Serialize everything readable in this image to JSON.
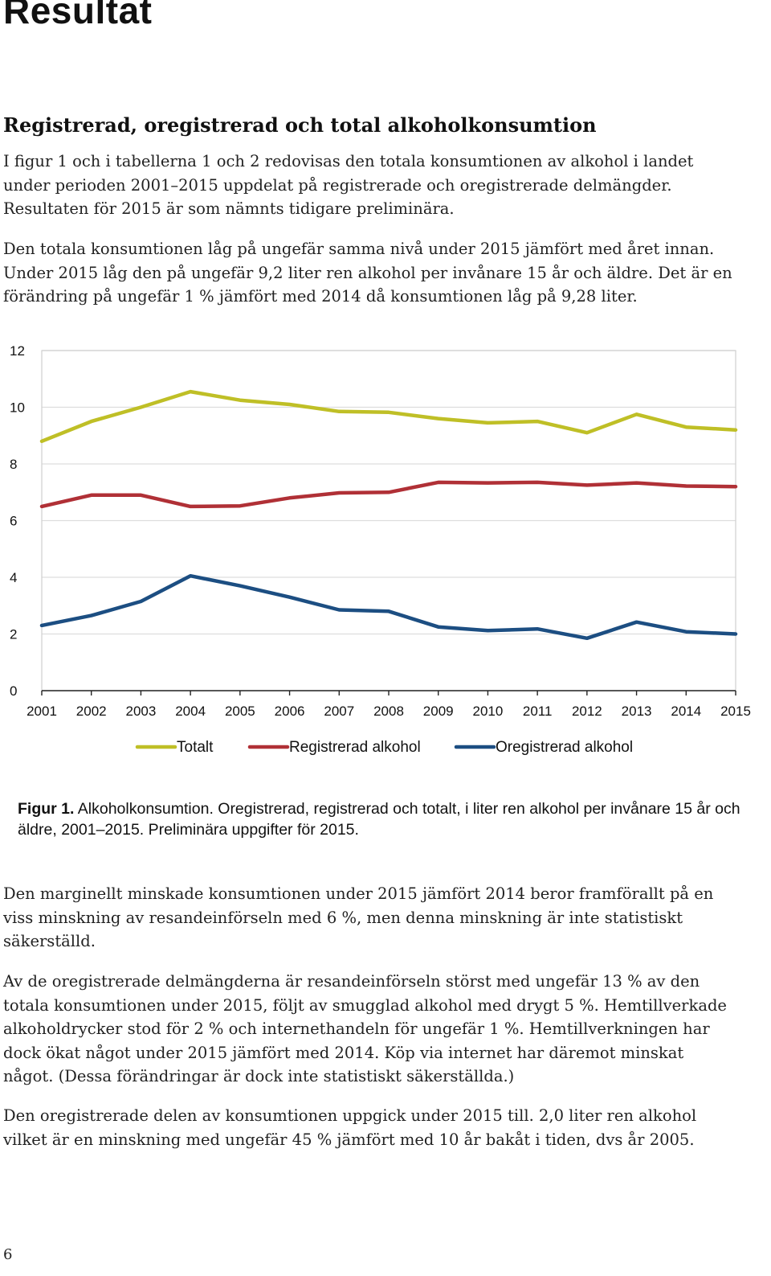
{
  "page": {
    "title": "Resultat",
    "section_heading": "Registrerad, oregistrerad och total alkoholkonsumtion",
    "paragraph1": [
      "I figur 1 och i tabellerna 1 och 2 redovisas den totala konsumtionen av alkohol i landet",
      "under perioden 2001–2015 uppdelat på registrerade och oregistrerade delmängder.",
      "Resultaten för 2015 är som nämnts tidigare preliminära."
    ],
    "paragraph2": [
      "Den totala konsumtionen låg på ungefär samma nivå under 2015 jämfört med året innan.",
      "Under 2015 låg den på ungefär 9,2 liter ren alkohol per invånare 15 år och äldre. Det är en",
      "förändring på ungefär 1 % jämfört med 2014 då konsumtionen låg på 9,28 liter."
    ],
    "caption_label": "Figur 1.",
    "caption_text": "Alkoholkonsumtion. Oregistrerad, registrerad och totalt, i liter ren alkohol per invånare 15 år och äldre, 2001–2015. Preliminära uppgifter för 2015.",
    "paragraph3": [
      "Den marginellt minskade konsumtionen under 2015 jämfört 2014 beror framförallt på en",
      "viss minskning av resandeinförseln med 6 %, men denna minskning är inte statistiskt",
      "säkerställd."
    ],
    "paragraph4": [
      "Av de oregistrerade delmängderna är resandeinförseln störst med ungefär 13 % av den",
      "totala konsumtionen under 2015, följt av smugglad alkohol med drygt 5 %. Hemtillverkade",
      "alkoholdrycker stod för 2 % och internethandeln för ungefär 1 %. Hemtillverkningen har",
      "dock ökat något under 2015 jämfört med 2014. Köp via internet har däremot minskat",
      "något. (Dessa förändringar är dock inte statistiskt säkerställda.)"
    ],
    "paragraph5": [
      "Den oregistrerade delen av konsumtionen uppgick under 2015 till. 2,0 liter ren alkohol",
      "vilket är en minskning med ungefär 45 % jämfört med 10 år bakåt i tiden, dvs år 2005."
    ],
    "page_number": "6"
  },
  "chart_data": {
    "type": "line",
    "categories": [
      "2001",
      "2002",
      "2003",
      "2004",
      "2005",
      "2006",
      "2007",
      "2008",
      "2009",
      "2010",
      "2011",
      "2012",
      "2013",
      "2014",
      "2015"
    ],
    "ylim": [
      0,
      12
    ],
    "yticks": [
      "0",
      "2",
      "4",
      "6",
      "8",
      "10",
      "12"
    ],
    "grid": true,
    "legend_position": "bottom",
    "series": [
      {
        "name": "Totalt",
        "color": "#bfbf26",
        "values": [
          8.8,
          9.5,
          10.0,
          10.55,
          10.25,
          10.1,
          9.85,
          9.82,
          9.6,
          9.45,
          9.5,
          9.1,
          9.75,
          9.3,
          9.2
        ]
      },
      {
        "name": "Registrerad alkohol",
        "color": "#b03036",
        "values": [
          6.5,
          6.9,
          6.9,
          6.5,
          6.52,
          6.8,
          6.98,
          7.0,
          7.35,
          7.33,
          7.35,
          7.25,
          7.33,
          7.22,
          7.2
        ]
      },
      {
        "name": "Oregistrerad alkohol",
        "color": "#1c4e82",
        "values": [
          2.3,
          2.65,
          3.15,
          4.05,
          3.7,
          3.3,
          2.85,
          2.8,
          2.25,
          2.12,
          2.18,
          1.85,
          2.42,
          2.08,
          2.0
        ]
      }
    ]
  }
}
